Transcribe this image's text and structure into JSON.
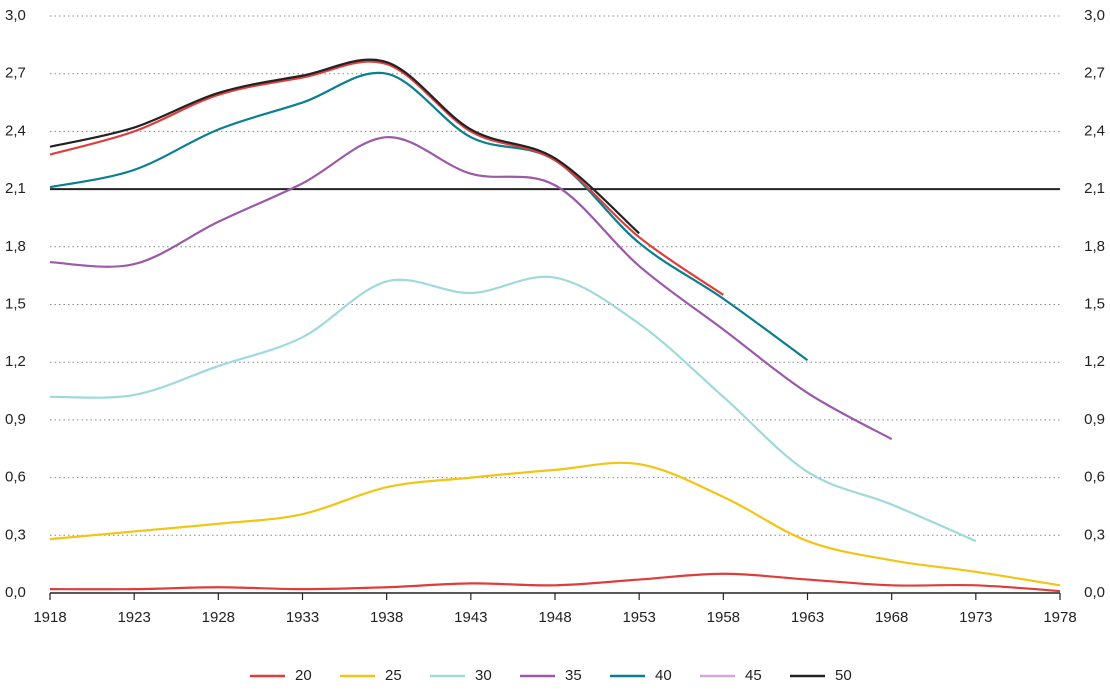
{
  "chart_data": {
    "type": "line",
    "xlim": [
      1918,
      1978
    ],
    "xticks": [
      1918,
      1923,
      1928,
      1933,
      1938,
      1943,
      1948,
      1953,
      1958,
      1963,
      1968,
      1973,
      1978
    ],
    "ylim": [
      0,
      3
    ],
    "yticks": [
      {
        "value": 0,
        "label": "0,0"
      },
      {
        "value": 0.3,
        "label": "0,3"
      },
      {
        "value": 0.6,
        "label": "0,6"
      },
      {
        "value": 0.9,
        "label": "0,9"
      },
      {
        "value": 1.2,
        "label": "1,2"
      },
      {
        "value": 1.5,
        "label": "1,5"
      },
      {
        "value": 1.8,
        "label": "1,8"
      },
      {
        "value": 2.1,
        "label": "2,1"
      },
      {
        "value": 2.4,
        "label": "2,4"
      },
      {
        "value": 2.7,
        "label": "2,7"
      },
      {
        "value": 3,
        "label": "3,0"
      }
    ],
    "grid": true,
    "hline": {
      "value": 2.1,
      "color": "#222222"
    },
    "legend": "bottom",
    "series": [
      {
        "name": "20",
        "color": "#e03c3c",
        "x": [
          1918,
          1923,
          1928,
          1933,
          1938,
          1943,
          1948,
          1953,
          1958,
          1963,
          1968,
          1973,
          1978
        ],
        "values": [
          0.02,
          0.02,
          0.03,
          0.02,
          0.03,
          0.05,
          0.04,
          0.07,
          0.1,
          0.07,
          0.04,
          0.04,
          0.01
        ]
      },
      {
        "name": "25",
        "color": "#f2c416",
        "x": [
          1918,
          1923,
          1928,
          1933,
          1938,
          1943,
          1948,
          1953,
          1958,
          1963,
          1968,
          1973,
          1978
        ],
        "values": [
          0.28,
          0.32,
          0.36,
          0.41,
          0.55,
          0.6,
          0.64,
          0.67,
          0.5,
          0.27,
          0.17,
          0.11,
          0.04
        ]
      },
      {
        "name": "30",
        "color": "#9fd9dc",
        "x": [
          1918,
          1923,
          1928,
          1933,
          1938,
          1943,
          1948,
          1953,
          1958,
          1963,
          1968,
          1973
        ],
        "values": [
          1.02,
          1.03,
          1.18,
          1.33,
          1.62,
          1.56,
          1.64,
          1.4,
          1.02,
          0.63,
          0.46,
          0.27
        ]
      },
      {
        "name": "35",
        "color": "#9b59a8",
        "x": [
          1918,
          1923,
          1928,
          1933,
          1938,
          1943,
          1948,
          1953,
          1958,
          1963,
          1968
        ],
        "values": [
          1.72,
          1.71,
          1.93,
          2.13,
          2.37,
          2.18,
          2.12,
          1.7,
          1.37,
          1.04,
          0.8
        ]
      },
      {
        "name": "40",
        "color": "#0a7f8f",
        "x": [
          1918,
          1923,
          1928,
          1933,
          1938,
          1943,
          1948,
          1953,
          1958,
          1963
        ],
        "values": [
          2.11,
          2.2,
          2.41,
          2.55,
          2.7,
          2.37,
          2.25,
          1.82,
          1.53,
          1.21
        ]
      },
      {
        "name": "45",
        "color": "#dba3d6",
        "line_color": "#e03c3c",
        "x": [
          1918,
          1923,
          1928,
          1933,
          1938,
          1943,
          1948,
          1953,
          1958
        ],
        "values": [
          2.28,
          2.4,
          2.59,
          2.68,
          2.75,
          2.4,
          2.25,
          1.85,
          1.55
        ]
      },
      {
        "name": "50",
        "color": "#222222",
        "x": [
          1918,
          1923,
          1928,
          1933,
          1938,
          1943,
          1948,
          1953
        ],
        "values": [
          2.32,
          2.42,
          2.6,
          2.69,
          2.76,
          2.41,
          2.26,
          1.87
        ]
      }
    ]
  }
}
